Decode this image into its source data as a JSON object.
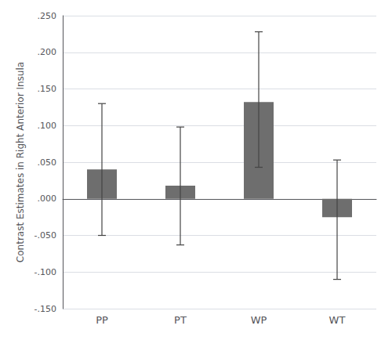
{
  "chart_data": {
    "type": "bar",
    "categories": [
      "PP",
      "PT",
      "WP",
      "WT"
    ],
    "values": [
      0.04,
      0.018,
      0.132,
      -0.025
    ],
    "errors_upper": [
      0.09,
      0.08,
      0.096,
      0.078
    ],
    "errors_lower": [
      0.09,
      0.081,
      0.089,
      0.085
    ],
    "color": "#6e6e6e",
    "ylabel": "Contrast Estimates in Right Anterior Insula",
    "ylim": [
      -0.15,
      0.25
    ],
    "yticks": [
      {
        "value": -0.15,
        "label": "-.150"
      },
      {
        "value": -0.1,
        "label": "-.100"
      },
      {
        "value": -0.05,
        "label": "-.050"
      },
      {
        "value": 0.0,
        "label": ".000"
      },
      {
        "value": 0.05,
        "label": ".050"
      },
      {
        "value": 0.1,
        "label": ".100"
      },
      {
        "value": 0.15,
        "label": ".150"
      },
      {
        "value": 0.2,
        "label": ".200"
      },
      {
        "value": 0.25,
        "label": ".250"
      }
    ],
    "grid": true
  }
}
